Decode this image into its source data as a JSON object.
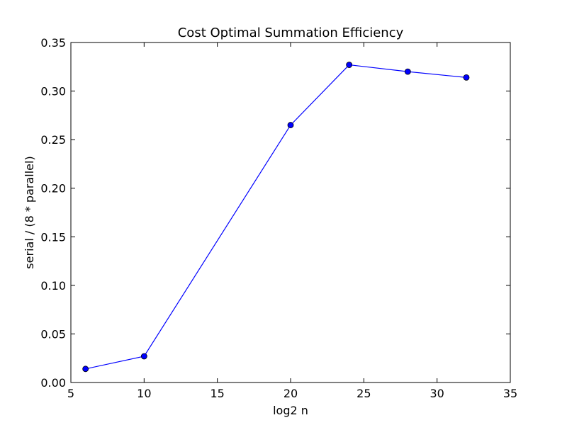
{
  "chart_data": {
    "type": "line",
    "title": "Cost Optimal Summation Efficiency",
    "xlabel": "log2 n",
    "ylabel": "serial / (8 * parallel)",
    "xlim": [
      5,
      35
    ],
    "ylim": [
      0,
      0.35
    ],
    "x_ticks": [
      "5",
      "10",
      "15",
      "20",
      "25",
      "30",
      "35"
    ],
    "y_ticks": [
      "0.00",
      "0.05",
      "0.10",
      "0.15",
      "0.20",
      "0.25",
      "0.30",
      "0.35"
    ],
    "grid": false,
    "legend": "none",
    "series": [
      {
        "x": [
          6,
          10,
          20,
          24,
          28,
          32
        ],
        "values": [
          0.014,
          0.027,
          0.265,
          0.327,
          0.32,
          0.314
        ],
        "color": "#0000ff",
        "marker": "circle"
      }
    ]
  }
}
